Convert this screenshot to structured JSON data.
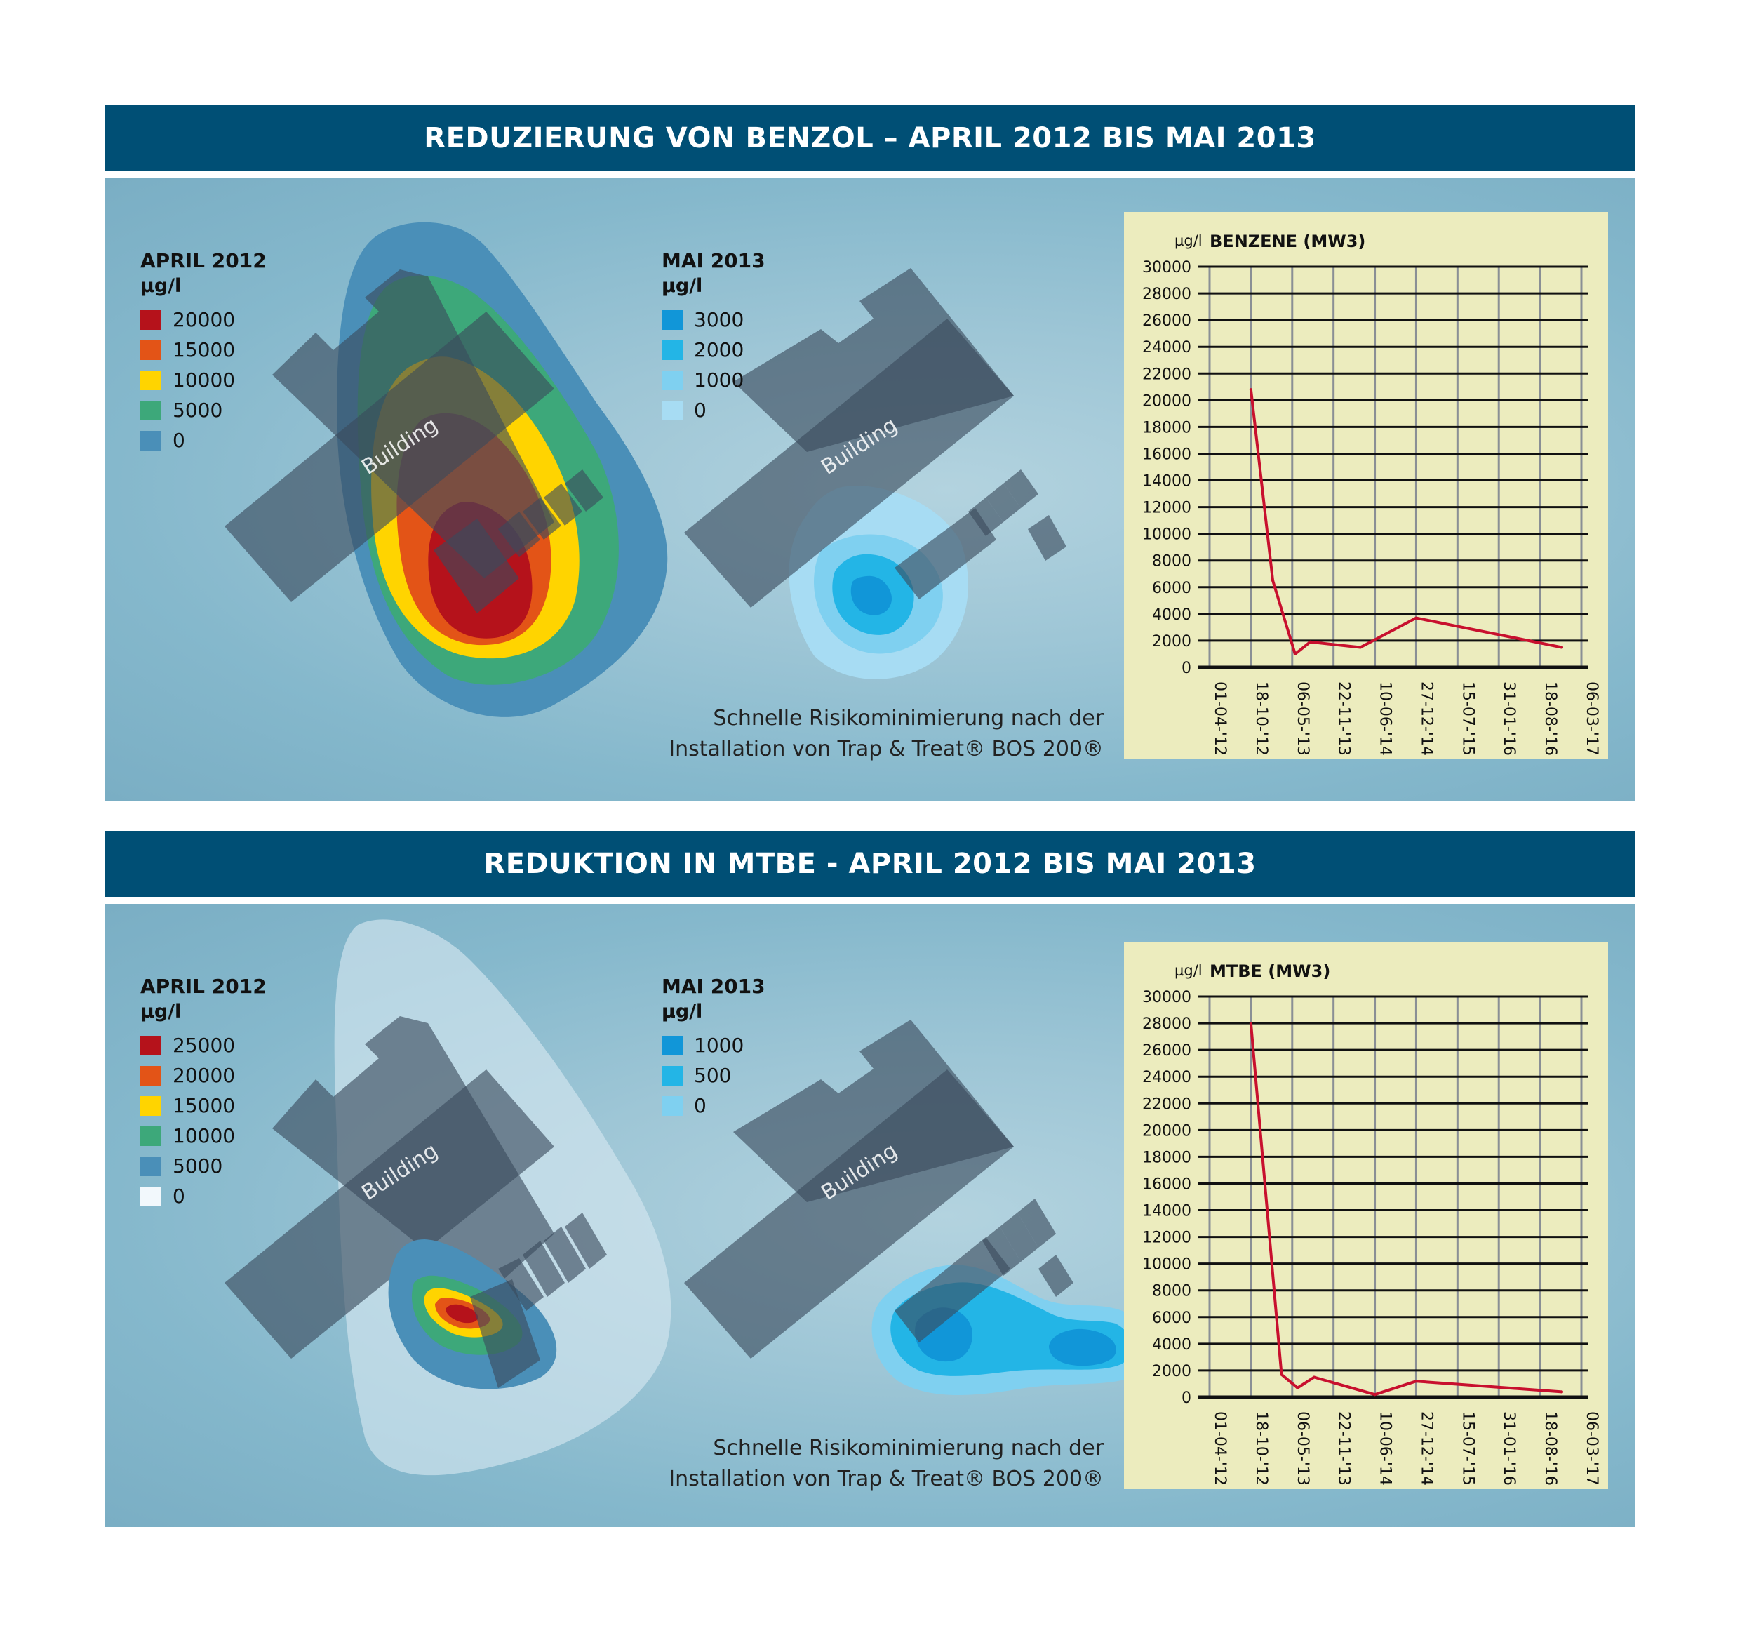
{
  "panels": [
    {
      "header": "REDUZIERUNG VON BENZOL – APRIL 2012 BIS MAI 2013",
      "legend_left": {
        "title": "APRIL 2012",
        "unit": "µg/l",
        "items": [
          {
            "label": "20000",
            "color": "#b5121b"
          },
          {
            "label": "15000",
            "color": "#e35417"
          },
          {
            "label": "10000",
            "color": "#ffd400"
          },
          {
            "label": "5000",
            "color": "#3da87a"
          },
          {
            "label": "0",
            "color": "#4a8fb8"
          }
        ]
      },
      "legend_right": {
        "title": "MAI 2013",
        "unit": "µg/l",
        "items": [
          {
            "label": "3000",
            "color": "#1196d8"
          },
          {
            "label": "2000",
            "color": "#23b5e6"
          },
          {
            "label": "1000",
            "color": "#7fd0f0"
          },
          {
            "label": "0",
            "color": "#a7dcf3"
          }
        ]
      },
      "building_label_left": "Building",
      "building_label_right": "Building",
      "caption": [
        "Schnelle Risikominimierung nach der",
        "Installation von Trap & Treat® BOS 200®"
      ]
    },
    {
      "header": "REDUKTION IN MTBE - APRIL 2012 BIS MAI 2013",
      "legend_left": {
        "title": "APRIL 2012",
        "unit": "µg/l",
        "items": [
          {
            "label": "25000",
            "color": "#b5121b"
          },
          {
            "label": "20000",
            "color": "#e35417"
          },
          {
            "label": "15000",
            "color": "#ffd400"
          },
          {
            "label": "10000",
            "color": "#3da87a"
          },
          {
            "label": "5000",
            "color": "#4a8fb8"
          },
          {
            "label": "0",
            "color": "#f2f8fc"
          }
        ]
      },
      "legend_right": {
        "title": "MAI 2013",
        "unit": "µg/l",
        "items": [
          {
            "label": "1000",
            "color": "#1196d8"
          },
          {
            "label": "500",
            "color": "#23b5e6"
          },
          {
            "label": "0",
            "color": "#7fd0f0"
          }
        ]
      },
      "building_label_left": "Building",
      "building_label_right": "Building",
      "caption": [
        "Schnelle Risikominimierung nach der",
        "Installation von Trap & Treat® BOS 200®"
      ]
    }
  ],
  "chart_data": [
    {
      "type": "line",
      "title": "BENZENE (MW3)",
      "ylabel": "µg/l",
      "xlabel": "",
      "ylim": [
        0,
        30000
      ],
      "yticks": [
        0,
        2000,
        4000,
        6000,
        8000,
        10000,
        12000,
        14000,
        16000,
        18000,
        20000,
        22000,
        24000,
        26000,
        28000,
        30000
      ],
      "xticks": [
        "01-04-'12",
        "18-10-'12",
        "06-05-'13",
        "22-11-'13",
        "10-06-'14",
        "27-12-'14",
        "15-07-'15",
        "31-01-'16",
        "18-08-'16",
        "06-03-'17"
      ],
      "xlim": [
        "2012-04-01",
        "2017-03-06"
      ],
      "grid": true,
      "line_color": "#c8102e",
      "series": [
        {
          "x": [
            "2012-10-18",
            "2013-02-01",
            "2013-05-20",
            "2013-08-01",
            "2014-04-01",
            "2014-12-27",
            "2016-12-01"
          ],
          "values": [
            20800,
            6500,
            1000,
            1900,
            1500,
            3700,
            1500
          ]
        }
      ]
    },
    {
      "type": "line",
      "title": "MTBE (MW3)",
      "ylabel": "µg/l",
      "xlabel": "",
      "ylim": [
        0,
        30000
      ],
      "yticks": [
        0,
        2000,
        4000,
        6000,
        8000,
        10000,
        12000,
        14000,
        16000,
        18000,
        20000,
        22000,
        24000,
        26000,
        28000,
        30000
      ],
      "xticks": [
        "01-04-'12",
        "18-10-'12",
        "06-05-'13",
        "22-11-'13",
        "10-06-'14",
        "27-12-'14",
        "15-07-'15",
        "31-01-'16",
        "18-08-'16",
        "06-03-'17"
      ],
      "xlim": [
        "2012-04-01",
        "2017-03-06"
      ],
      "grid": true,
      "line_color": "#c8102e",
      "series": [
        {
          "x": [
            "2012-10-18",
            "2013-03-15",
            "2013-06-01",
            "2013-08-20",
            "2014-06-10",
            "2014-12-27",
            "2016-12-01"
          ],
          "values": [
            28000,
            1700,
            700,
            1500,
            200,
            1200,
            400
          ]
        }
      ]
    }
  ]
}
